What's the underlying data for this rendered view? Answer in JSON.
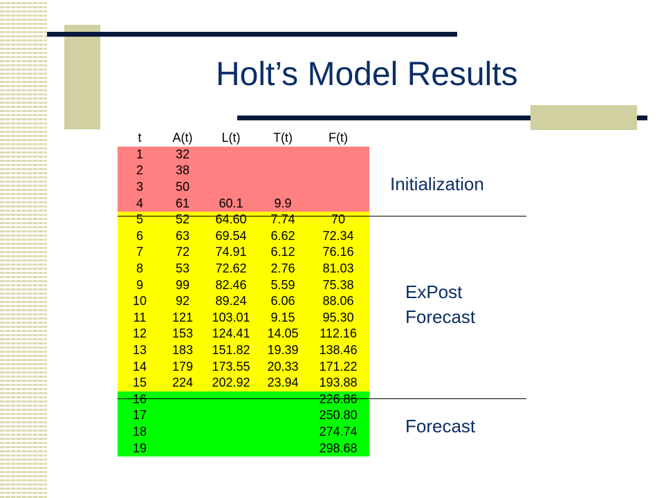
{
  "slide": {
    "title": "Holt’s Model Results",
    "colors": {
      "title": "#0c2e66",
      "initialization": "#ff8080",
      "expost": "#ffff00",
      "forecast": "#00ff00"
    }
  },
  "table": {
    "headers": [
      "t",
      "A(t)",
      "L(t)",
      "T(t)",
      "F(t)"
    ],
    "rows": [
      {
        "section": "init",
        "cells": [
          "1",
          "32",
          "",
          "",
          ""
        ]
      },
      {
        "section": "init",
        "cells": [
          "2",
          "38",
          "",
          "",
          ""
        ]
      },
      {
        "section": "init",
        "cells": [
          "3",
          "50",
          "",
          "",
          ""
        ]
      },
      {
        "section": "init",
        "cells": [
          "4",
          "61",
          "60.1",
          "9.9",
          ""
        ]
      },
      {
        "section": "expost",
        "cells": [
          "5",
          "52",
          "64.60",
          "7.74",
          "70"
        ]
      },
      {
        "section": "expost",
        "cells": [
          "6",
          "63",
          "69.54",
          "6.62",
          "72.34"
        ]
      },
      {
        "section": "expost",
        "cells": [
          "7",
          "72",
          "74.91",
          "6.12",
          "76.16"
        ]
      },
      {
        "section": "expost",
        "cells": [
          "8",
          "53",
          "72.62",
          "2.76",
          "81.03"
        ]
      },
      {
        "section": "expost",
        "cells": [
          "9",
          "99",
          "82.46",
          "5.59",
          "75.38"
        ]
      },
      {
        "section": "expost",
        "cells": [
          "10",
          "92",
          "89.24",
          "6.06",
          "88.06"
        ]
      },
      {
        "section": "expost",
        "cells": [
          "11",
          "121",
          "103.01",
          "9.15",
          "95.30"
        ]
      },
      {
        "section": "expost",
        "cells": [
          "12",
          "153",
          "124.41",
          "14.05",
          "112.16"
        ]
      },
      {
        "section": "expost",
        "cells": [
          "13",
          "183",
          "151.82",
          "19.39",
          "138.46"
        ]
      },
      {
        "section": "expost",
        "cells": [
          "14",
          "179",
          "173.55",
          "20.33",
          "171.22"
        ]
      },
      {
        "section": "expost",
        "cells": [
          "15",
          "224",
          "202.92",
          "23.94",
          "193.88"
        ]
      },
      {
        "section": "fc",
        "cells": [
          "16",
          "",
          "",
          "",
          "226.86"
        ]
      },
      {
        "section": "fc",
        "cells": [
          "17",
          "",
          "",
          "",
          "250.80"
        ]
      },
      {
        "section": "fc",
        "cells": [
          "18",
          "",
          "",
          "",
          "274.74"
        ]
      },
      {
        "section": "fc",
        "cells": [
          "19",
          "",
          "",
          "",
          "298.68"
        ]
      }
    ]
  },
  "labels": {
    "initialization": "Initialization",
    "expost_line1": "ExPost",
    "expost_line2": "Forecast",
    "forecast": "Forecast"
  }
}
